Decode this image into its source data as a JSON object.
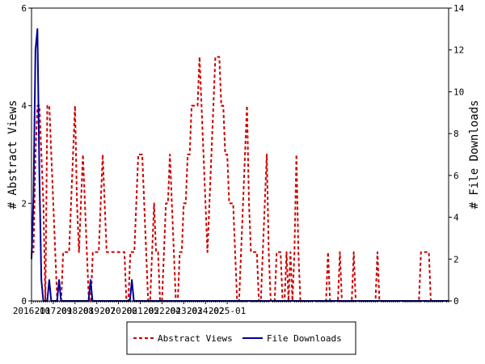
{
  "chart_data": {
    "type": "line",
    "grid": false,
    "legend_position": "bottom",
    "x_tick_labels": [
      "2016-10",
      "2017-09",
      "2018-08",
      "2019-07",
      "2020-06",
      "2021-05",
      "2022-04",
      "2023-03",
      "2024-02",
      "2025-01"
    ],
    "left_axis": {
      "label": "# Abstract Views",
      "ylim": [
        0,
        6
      ],
      "ticks": [
        "0",
        "2",
        "4",
        "6"
      ]
    },
    "right_axis": {
      "label": "# File Downloads",
      "ylim": [
        0,
        14
      ],
      "ticks": [
        "0",
        "2",
        "4",
        "6",
        "8",
        "10",
        "12",
        "14"
      ]
    },
    "series": [
      {
        "name": "Abstract Views",
        "axis": "left",
        "color": "#cc0000",
        "style": "dashed",
        "values": [
          1,
          1,
          3,
          4,
          4,
          3,
          2,
          0,
          4,
          4,
          3,
          2,
          1,
          0,
          0,
          0,
          1,
          1,
          1,
          1,
          2,
          3,
          4,
          2,
          1,
          2,
          3,
          2,
          1,
          0,
          0,
          1,
          1,
          1,
          1,
          2,
          3,
          2,
          1,
          1,
          1,
          1,
          1,
          1,
          1,
          1,
          1,
          1,
          0,
          0,
          1,
          1,
          1,
          2,
          3,
          3,
          3,
          2,
          1,
          0,
          0,
          1,
          2,
          1,
          1,
          0,
          0,
          1,
          2,
          2,
          3,
          2,
          1,
          0,
          0,
          1,
          1,
          2,
          2,
          3,
          3,
          4,
          4,
          4,
          4,
          5,
          4,
          3,
          2,
          1,
          2,
          3,
          4,
          5,
          5,
          5,
          4,
          4,
          3,
          3,
          2,
          2,
          2,
          1,
          0,
          0,
          1,
          2,
          3,
          4,
          2,
          1,
          1,
          1,
          1,
          0,
          0,
          1,
          2,
          3,
          1,
          0,
          0,
          0,
          1,
          1,
          1,
          0,
          0,
          1,
          0,
          1,
          0,
          1,
          3,
          1,
          0,
          0,
          0,
          0,
          0,
          0,
          0,
          0,
          0,
          0,
          0,
          0,
          0,
          0,
          1,
          0,
          0,
          0,
          0,
          0,
          1,
          0,
          0,
          0,
          0,
          0,
          0,
          1,
          0,
          0,
          0,
          0,
          0,
          0,
          0,
          0,
          0,
          0,
          0,
          1,
          0,
          0,
          0,
          0,
          0,
          0,
          0,
          0,
          0,
          0,
          0,
          0,
          0,
          0,
          0,
          0,
          0,
          0,
          0,
          0,
          0,
          1,
          1,
          1,
          1,
          1,
          0,
          0,
          0,
          0,
          0,
          0,
          0,
          0,
          0,
          0
        ]
      },
      {
        "name": "File Downloads",
        "axis": "right",
        "color": "#000099",
        "style": "solid",
        "values": [
          2,
          5,
          12,
          13,
          6,
          1,
          0,
          0,
          0,
          1,
          0,
          0,
          0,
          0,
          1,
          0,
          0,
          0,
          0,
          0,
          0,
          0,
          0,
          0,
          0,
          0,
          0,
          0,
          0,
          0,
          1,
          0,
          0,
          0,
          0,
          0,
          0,
          0,
          0,
          0,
          0,
          0,
          0,
          0,
          0,
          0,
          0,
          0,
          0,
          0,
          0,
          1,
          0,
          0,
          0,
          0,
          0,
          0,
          0,
          0,
          0,
          0,
          0,
          0,
          0,
          0,
          0,
          0,
          0,
          0,
          0,
          0,
          0,
          0,
          0,
          0,
          0,
          0,
          0,
          0,
          0,
          0,
          0,
          0,
          0,
          0,
          0,
          0,
          0,
          0,
          0,
          0,
          0,
          0,
          0,
          0,
          0,
          0,
          0,
          0,
          0,
          0,
          0,
          0,
          0,
          0,
          0,
          0,
          0,
          0,
          0,
          0,
          0,
          0,
          0,
          0,
          0,
          0,
          0,
          0,
          0,
          0,
          0,
          0,
          0,
          0,
          0,
          0,
          0,
          0,
          0,
          0,
          0,
          0,
          0,
          0,
          0,
          0,
          0,
          0,
          0,
          0,
          0,
          0,
          0,
          0,
          0,
          0,
          0,
          0,
          0,
          0,
          0,
          0,
          0,
          0,
          0,
          0,
          0,
          0,
          0,
          0,
          0,
          0,
          0,
          0,
          0,
          0,
          0,
          0,
          0,
          0,
          0,
          0,
          0,
          0,
          0,
          0,
          0,
          0,
          0,
          0,
          0,
          0,
          0,
          0,
          0,
          0,
          0,
          0,
          0,
          0,
          0,
          0,
          0,
          0,
          0,
          0,
          0,
          0,
          0,
          0,
          0,
          0,
          0,
          0,
          0,
          0,
          0,
          0,
          0,
          0,
          0
        ]
      }
    ]
  }
}
